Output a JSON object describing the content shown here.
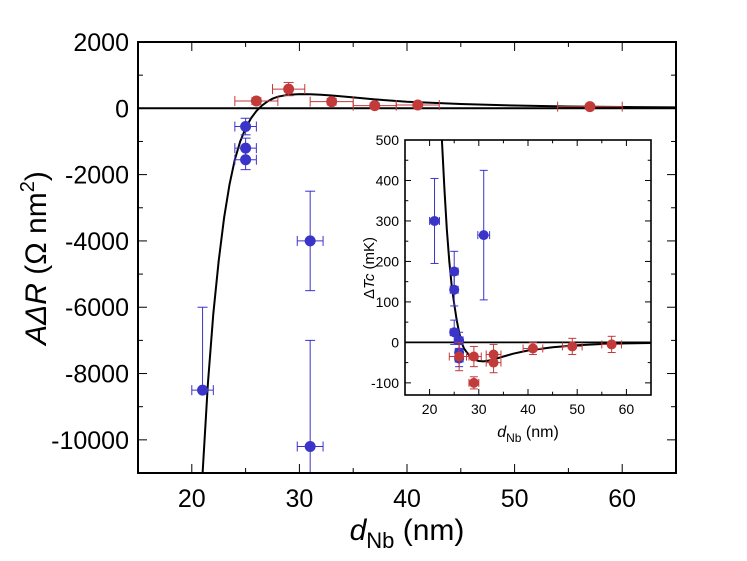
{
  "chart_data": [
    {
      "id": "main",
      "type": "scatter",
      "title": "",
      "xlabel": {
        "main": "d",
        "sub": "Nb",
        "unit": " (nm)"
      },
      "ylabel": {
        "prefix": "AΔ",
        "var": "R",
        "unit_open": " (Ω nm",
        "sup": "2",
        "unit_close": ")"
      },
      "xlim": [
        15,
        65
      ],
      "ylim": [
        -11000,
        2000
      ],
      "x_ticks": [
        20,
        30,
        40,
        50,
        60
      ],
      "x_tick_labels": [
        "20",
        "30",
        "40",
        "50",
        "60"
      ],
      "y_ticks": [
        2000,
        0,
        -2000,
        -4000,
        -6000,
        -8000,
        -10000
      ],
      "y_tick_labels": [
        "2000",
        "0",
        "-2000",
        "-4000",
        "-6000",
        "-8000",
        "-10000"
      ],
      "series": [
        {
          "name": "blue",
          "color": "#3a34c8",
          "points": [
            {
              "x": 21,
              "y": -8500,
              "xerr": 1,
              "yerr": [
                2500,
                0
              ]
            },
            {
              "x": 25,
              "y": -550,
              "xerr": 1,
              "yerr": [
                250,
                250
              ]
            },
            {
              "x": 25,
              "y": -1200,
              "xerr": 1,
              "yerr": [
                300,
                300
              ]
            },
            {
              "x": 25,
              "y": -1550,
              "xerr": 1,
              "yerr": [
                300,
                300
              ]
            },
            {
              "x": 31,
              "y": -4000,
              "xerr": 1.2,
              "yerr": [
                1500,
                1500
              ]
            },
            {
              "x": 31,
              "y": -10200,
              "xerr": 1.2,
              "yerr": [
                3200,
                800
              ]
            }
          ]
        },
        {
          "name": "red",
          "color": "#c23a3a",
          "points": [
            {
              "x": 26,
              "y": 220,
              "xerr": 2,
              "yerr": [
                100,
                100
              ]
            },
            {
              "x": 29,
              "y": 580,
              "xerr": 1.5,
              "yerr": [
                200,
                200
              ]
            },
            {
              "x": 33,
              "y": 200,
              "xerr": 2,
              "yerr": [
                100,
                100
              ]
            },
            {
              "x": 37,
              "y": 80,
              "xerr": 2,
              "yerr": [
                80,
                80
              ]
            },
            {
              "x": 41,
              "y": 100,
              "xerr": 2,
              "yerr": [
                80,
                80
              ]
            },
            {
              "x": 57,
              "y": 50,
              "xerr": 3,
              "yerr": [
                60,
                60
              ]
            }
          ]
        }
      ],
      "fit_curve": [
        [
          21,
          -11000
        ],
        [
          21.5,
          -8300
        ],
        [
          22,
          -6200
        ],
        [
          22.5,
          -4600
        ],
        [
          23,
          -3300
        ],
        [
          23.5,
          -2300
        ],
        [
          24,
          -1550
        ],
        [
          24.5,
          -1000
        ],
        [
          25,
          -600
        ],
        [
          25.5,
          -300
        ],
        [
          26,
          -80
        ],
        [
          26.5,
          80
        ],
        [
          27,
          200
        ],
        [
          27.5,
          290
        ],
        [
          28,
          350
        ],
        [
          29,
          410
        ],
        [
          30,
          430
        ],
        [
          31,
          425
        ],
        [
          32,
          410
        ],
        [
          33,
          385
        ],
        [
          35,
          330
        ],
        [
          37,
          270
        ],
        [
          40,
          200
        ],
        [
          45,
          130
        ],
        [
          50,
          85
        ],
        [
          55,
          55
        ],
        [
          60,
          38
        ],
        [
          65,
          28
        ]
      ]
    },
    {
      "id": "inset",
      "type": "scatter",
      "title": "",
      "xlabel": {
        "main": "d",
        "sub": "Nb",
        "unit": " (nm)"
      },
      "ylabel": {
        "prefix": "Δ",
        "var": "Tc",
        "unit": " (mK)"
      },
      "xlim": [
        15,
        65
      ],
      "ylim": [
        -130,
        500
      ],
      "x_ticks": [
        20,
        30,
        40,
        50,
        60
      ],
      "x_tick_labels": [
        "20",
        "30",
        "40",
        "50",
        "60"
      ],
      "y_ticks": [
        500,
        400,
        300,
        200,
        100,
        0,
        -100
      ],
      "y_tick_labels": [
        "500",
        "400",
        "300",
        "200",
        "100",
        "0",
        "-100"
      ],
      "series": [
        {
          "name": "blue",
          "color": "#3a34c8",
          "points": [
            {
              "x": 21,
              "y": 300,
              "xerr": 1,
              "yerr": [
                105,
                105
              ]
            },
            {
              "x": 25,
              "y": 175,
              "xerr": 0.8,
              "yerr": [
                50,
                50
              ]
            },
            {
              "x": 25,
              "y": 130,
              "xerr": 0.8,
              "yerr": [
                40,
                40
              ]
            },
            {
              "x": 25,
              "y": 25,
              "xerr": 0.8,
              "yerr": [
                30,
                30
              ]
            },
            {
              "x": 26,
              "y": 5,
              "xerr": 0.8,
              "yerr": [
                20,
                20
              ]
            },
            {
              "x": 26,
              "y": -25,
              "xerr": 0.8,
              "yerr": [
                20,
                20
              ]
            },
            {
              "x": 26,
              "y": -40,
              "xerr": 0.8,
              "yerr": [
                20,
                20
              ]
            },
            {
              "x": 31,
              "y": 265,
              "xerr": 1.2,
              "yerr": [
                160,
                160
              ]
            }
          ]
        },
        {
          "name": "red",
          "color": "#c23a3a",
          "points": [
            {
              "x": 26,
              "y": -35,
              "xerr": 2,
              "yerr": [
                35,
                35
              ]
            },
            {
              "x": 29,
              "y": -35,
              "xerr": 1.5,
              "yerr": [
                25,
                25
              ]
            },
            {
              "x": 29,
              "y": -100,
              "xerr": 1,
              "yerr": [
                15,
                15
              ]
            },
            {
              "x": 33,
              "y": -30,
              "xerr": 1.5,
              "yerr": [
                25,
                25
              ]
            },
            {
              "x": 33,
              "y": -50,
              "xerr": 1.5,
              "yerr": [
                25,
                25
              ]
            },
            {
              "x": 41,
              "y": -15,
              "xerr": 2,
              "yerr": [
                15,
                15
              ]
            },
            {
              "x": 49,
              "y": -10,
              "xerr": 2,
              "yerr": [
                20,
                20
              ]
            },
            {
              "x": 57,
              "y": -5,
              "xerr": 2,
              "yerr": [
                20,
                20
              ]
            }
          ]
        }
      ],
      "fit_curve": [
        [
          22.5,
          500
        ],
        [
          23,
          380
        ],
        [
          23.5,
          280
        ],
        [
          24,
          200
        ],
        [
          24.5,
          140
        ],
        [
          25,
          95
        ],
        [
          25.5,
          55
        ],
        [
          26,
          25
        ],
        [
          26.5,
          0
        ],
        [
          27,
          -15
        ],
        [
          28,
          -32
        ],
        [
          29,
          -42
        ],
        [
          30,
          -46
        ],
        [
          31,
          -47
        ],
        [
          32,
          -45
        ],
        [
          33,
          -42
        ],
        [
          35,
          -35
        ],
        [
          37,
          -28
        ],
        [
          40,
          -20
        ],
        [
          45,
          -12
        ],
        [
          50,
          -7
        ],
        [
          55,
          -4
        ],
        [
          60,
          -2.5
        ],
        [
          65,
          -1.5
        ]
      ]
    }
  ]
}
